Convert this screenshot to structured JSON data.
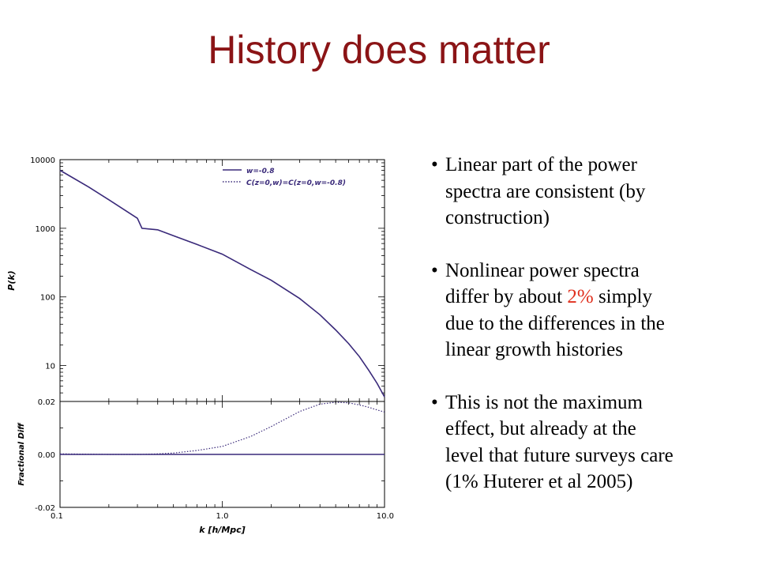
{
  "slide": {
    "title": "History does matter"
  },
  "bullets": [
    {
      "lines": [
        {
          "text": "Linear part of the power"
        },
        {
          "text": "spectra are consistent  (by"
        },
        {
          "text": "construction)"
        }
      ]
    },
    {
      "lines": [
        {
          "text": "Nonlinear power spectra"
        },
        {
          "pre": "differ by about ",
          "hl": "2%",
          "post": " simply"
        },
        {
          "text": "due to the differences in the"
        },
        {
          "text": "linear growth histories"
        }
      ]
    },
    {
      "lines": [
        {
          "text": "This is not the maximum"
        },
        {
          "text": "effect, but already at the"
        },
        {
          "text": "level that future surveys care"
        },
        {
          "text": "(1% Huterer et al 2005)"
        }
      ]
    }
  ],
  "colors": {
    "title": "#8b1416",
    "highlight": "#e0301e",
    "series": "#3a2a7a"
  },
  "chart_data": {
    "type": "line",
    "xlabel": "k [h/Mpc]",
    "x_scale": "log",
    "xlim": [
      0.1,
      10.0
    ],
    "x_ticks": [
      "0.1",
      "1.0",
      "10.0"
    ],
    "x": [
      0.1,
      0.15,
      0.2,
      0.3,
      0.32,
      0.4,
      0.5,
      0.7,
      1.0,
      1.5,
      2.0,
      3.0,
      4.0,
      5.0,
      6.0,
      7.0,
      8.0,
      9.0,
      10.0
    ],
    "top_panel": {
      "ylabel": "P(k)",
      "y_scale": "log",
      "ylim": [
        3,
        10000
      ],
      "y_ticks": [
        "10000",
        "1000",
        "100",
        "10"
      ],
      "legend": [
        "w=-0.8",
        "C(z=0,w)=C(z=0,w=-0.8)"
      ],
      "legend_position": "top-right",
      "series": [
        {
          "name": "w=-0.8",
          "style": "solid",
          "values": [
            7000,
            4000,
            2600,
            1400,
            1000,
            950,
            780,
            580,
            420,
            250,
            175,
            95,
            55,
            33,
            21,
            13.5,
            8.5,
            5.5,
            3.5
          ]
        },
        {
          "name": "C(z=0,w)=C(z=0,w=-0.8)",
          "style": "dotted",
          "values": [
            7000,
            4000,
            2600,
            1400,
            1000,
            950,
            780,
            580,
            420,
            250,
            175,
            95,
            55,
            33,
            21,
            13.5,
            8.5,
            5.5,
            3.5
          ]
        }
      ]
    },
    "bottom_panel": {
      "ylabel": "Fractional Diff",
      "ylim": [
        -0.02,
        0.02
      ],
      "y_ticks": [
        "0.02",
        "0.00",
        "-0.02"
      ],
      "series": [
        {
          "name": "",
          "style": "solid",
          "values": [
            0,
            0,
            0,
            0,
            0,
            0,
            0,
            0,
            0,
            0,
            0,
            0,
            0,
            0,
            0,
            0,
            0,
            0,
            0
          ]
        },
        {
          "name": "",
          "style": "dotted",
          "values": [
            0.0002,
            0.0001,
            0.0,
            0.0,
            0.0,
            0.0002,
            0.0005,
            0.0015,
            0.003,
            0.0068,
            0.0105,
            0.0162,
            0.019,
            0.0197,
            0.0195,
            0.0187,
            0.0178,
            0.0168,
            0.016
          ]
        }
      ]
    }
  }
}
